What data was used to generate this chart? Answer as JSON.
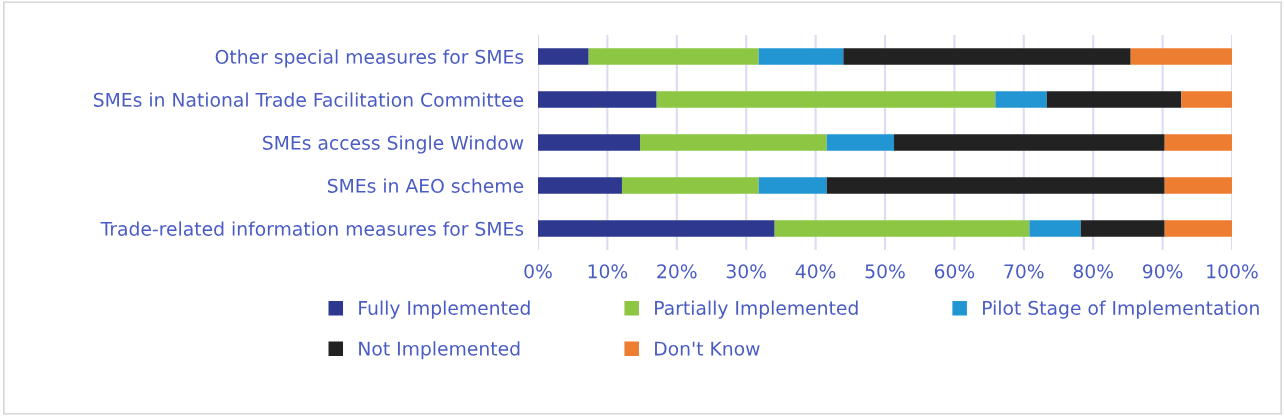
{
  "chart_data": {
    "type": "bar",
    "orientation": "horizontal",
    "stacked": true,
    "categories": [
      "Other special measures for SMEs",
      "SMEs in National Trade Facilitation Committee",
      "SMEs access Single Window",
      "SMEs in AEO scheme",
      "Trade-related information measures for SMEs"
    ],
    "series": [
      {
        "name": "Fully Implemented",
        "color": "#2e388f",
        "values": [
          7.3,
          17.1,
          14.7,
          12.1,
          34.1
        ]
      },
      {
        "name": "Partially Implemented",
        "color": "#8dc643",
        "values": [
          24.5,
          48.8,
          26.9,
          19.7,
          36.7
        ]
      },
      {
        "name": "Pilot Stage of Implementation",
        "color": "#2196d3",
        "values": [
          12.2,
          7.4,
          9.7,
          9.8,
          7.4
        ]
      },
      {
        "name": "Not Implemented",
        "color": "#222222",
        "values": [
          41.4,
          19.4,
          39.0,
          48.7,
          12.1
        ]
      },
      {
        "name": "Don't Know",
        "color": "#ed7d31",
        "values": [
          14.6,
          7.3,
          9.7,
          9.7,
          9.7
        ]
      }
    ],
    "xlim": [
      0,
      100
    ],
    "xticks": [
      {
        "value": 0,
        "label": "0%"
      },
      {
        "value": 10,
        "label": "10%"
      },
      {
        "value": 20,
        "label": "20%"
      },
      {
        "value": 30,
        "label": "30%"
      },
      {
        "value": 40,
        "label": "40%"
      },
      {
        "value": 50,
        "label": "50%"
      },
      {
        "value": 60,
        "label": "60%"
      },
      {
        "value": 70,
        "label": "70%"
      },
      {
        "value": 80,
        "label": "80%"
      },
      {
        "value": 90,
        "label": "90%"
      },
      {
        "value": 100,
        "label": "100%"
      }
    ],
    "grid": "x",
    "legend": "bottom"
  }
}
